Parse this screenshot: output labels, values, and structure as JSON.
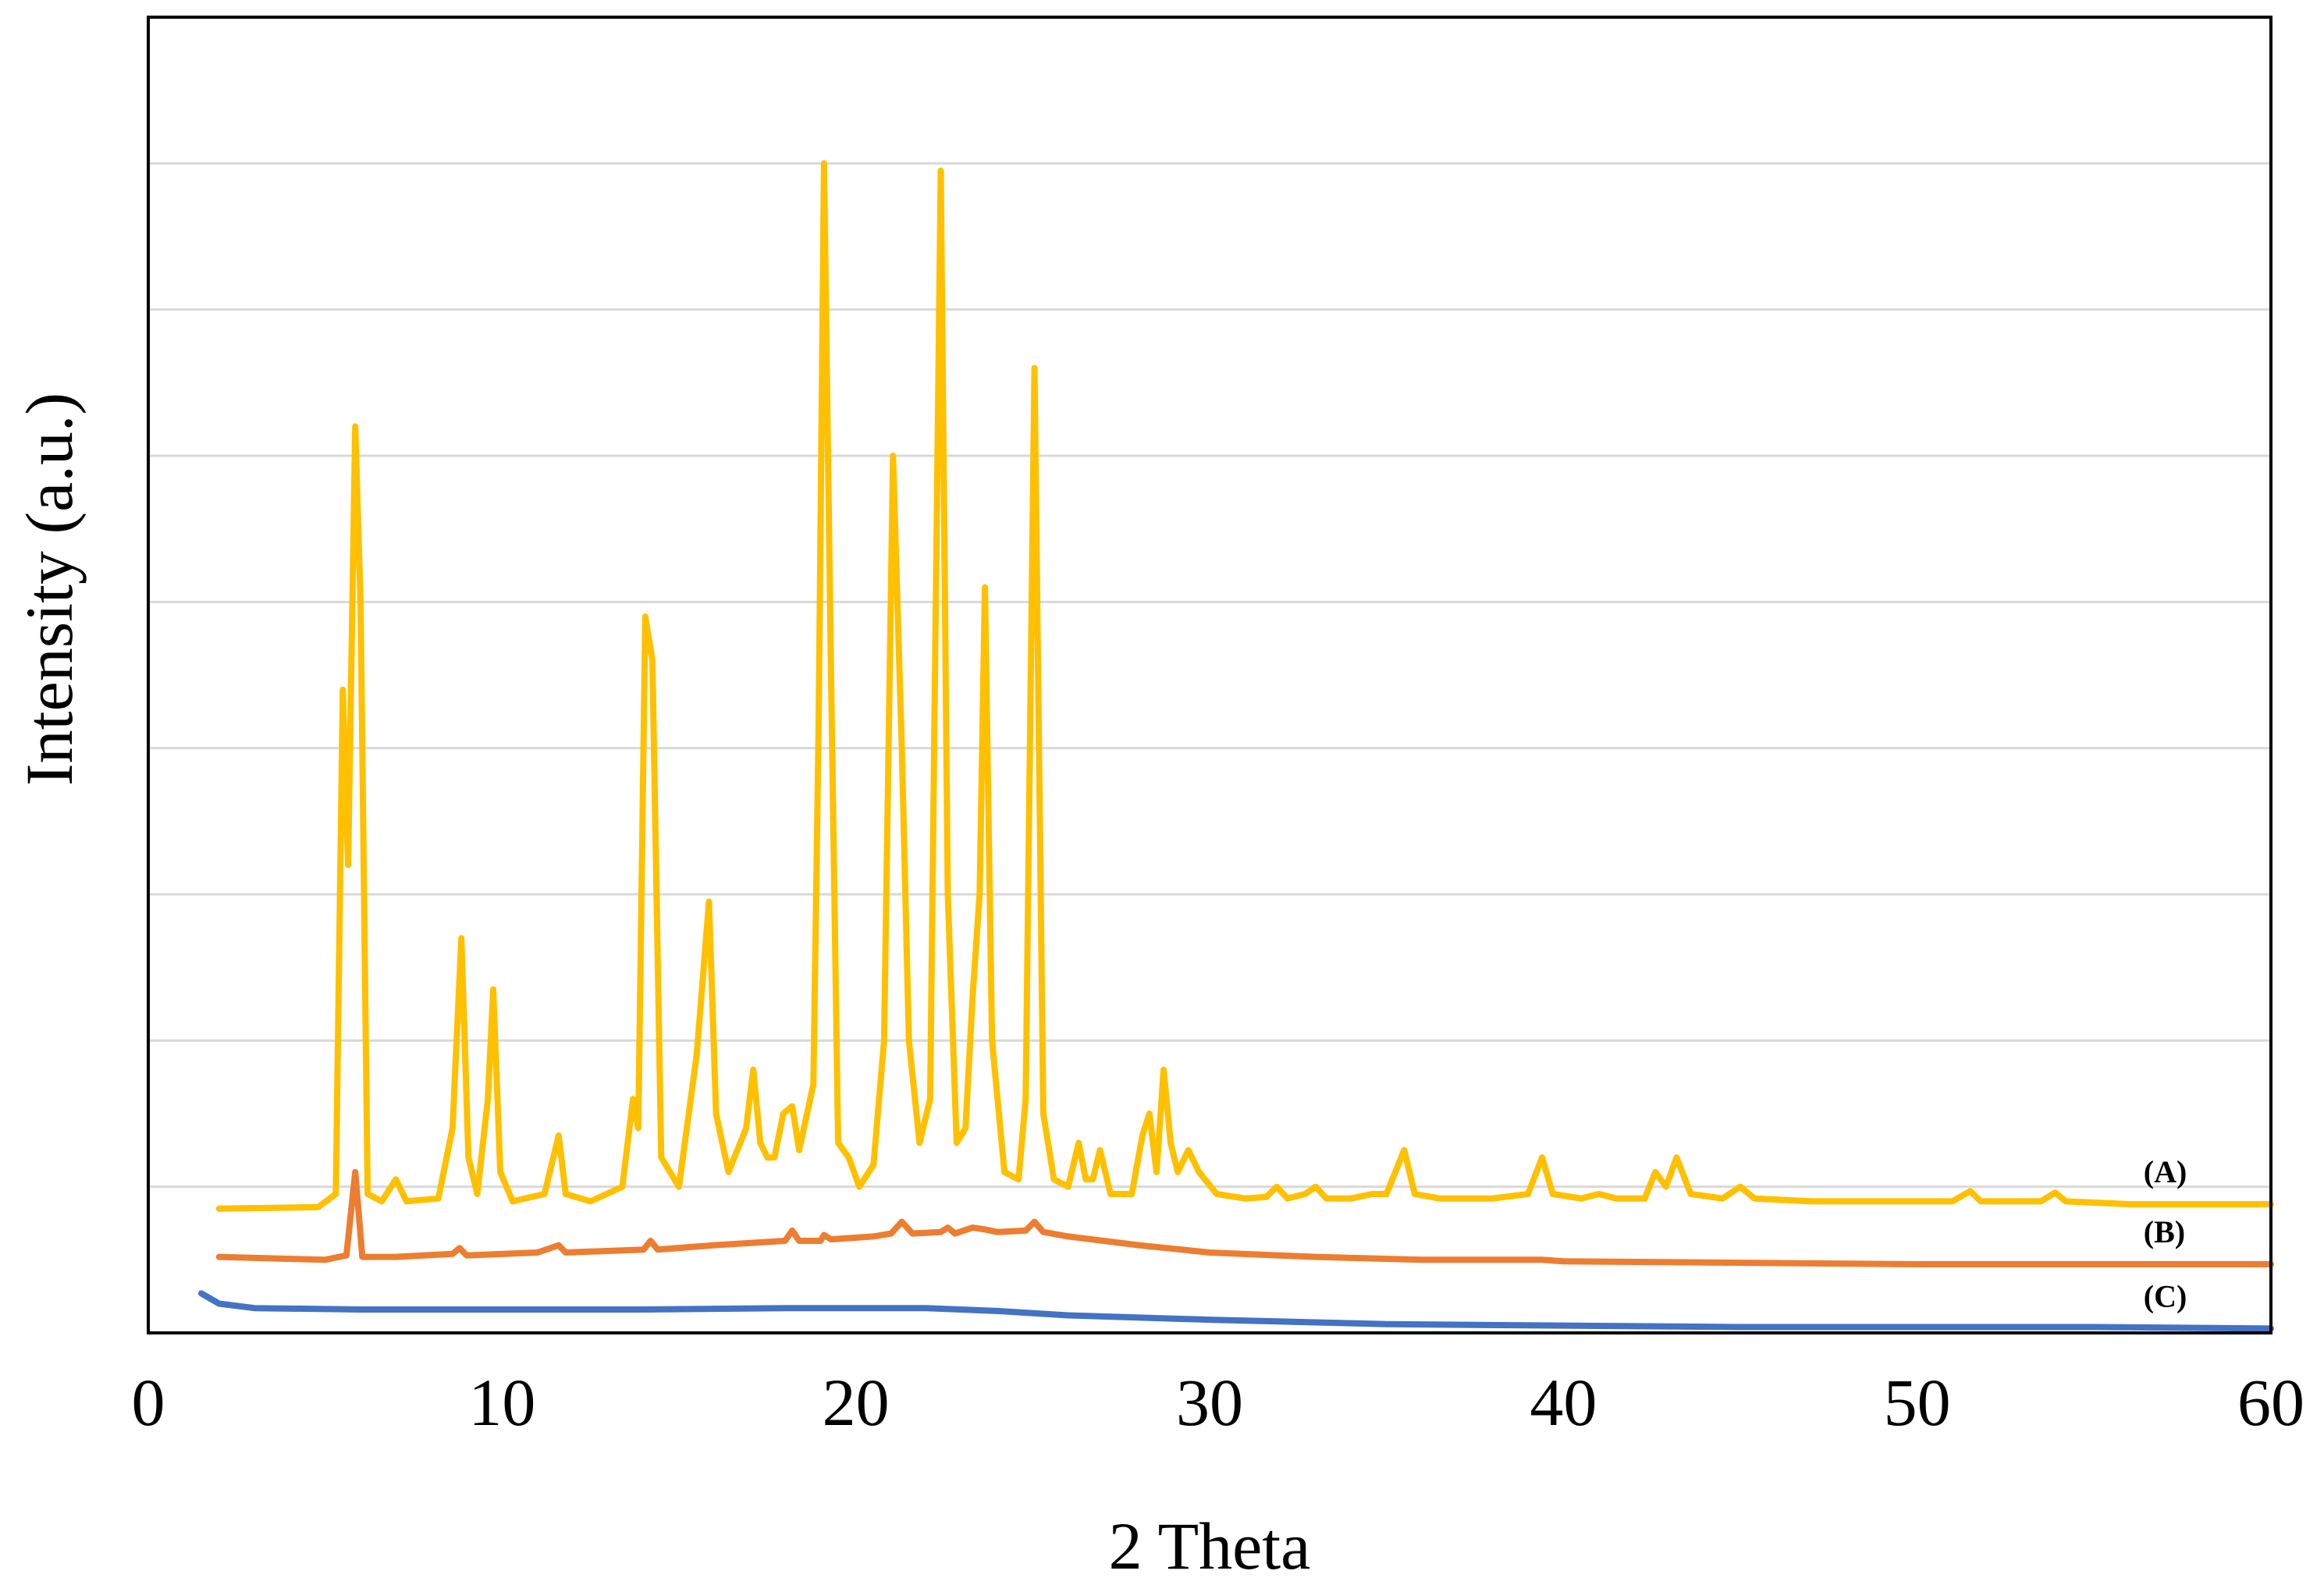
{
  "chart_data": {
    "type": "line",
    "title": "",
    "xlabel": "2 Theta",
    "ylabel": "Intensity (a.u.)",
    "xlim": [
      0,
      60
    ],
    "ylim": [
      0,
      9
    ],
    "x_ticks": [
      0,
      10,
      20,
      30,
      40,
      50,
      60
    ],
    "x_tick_labels": [
      "0",
      "10",
      "20",
      "30",
      "40",
      "50",
      "60"
    ],
    "y_tick_labels": [],
    "grid": "horizontal",
    "legend": "none (series labels printed at right end of curves)",
    "series": [
      {
        "name": "(A)",
        "color": "#FFC000",
        "baseline": 0.85,
        "points": [
          [
            2.0,
            0.85
          ],
          [
            4.8,
            0.86
          ],
          [
            5.3,
            0.95
          ],
          [
            5.5,
            4.4
          ],
          [
            5.65,
            3.2
          ],
          [
            5.85,
            6.2
          ],
          [
            6.0,
            5.0
          ],
          [
            6.2,
            0.95
          ],
          [
            6.6,
            0.9
          ],
          [
            7.0,
            1.05
          ],
          [
            7.3,
            0.9
          ],
          [
            8.2,
            0.92
          ],
          [
            8.6,
            1.4
          ],
          [
            8.85,
            2.7
          ],
          [
            9.05,
            1.2
          ],
          [
            9.3,
            0.95
          ],
          [
            9.6,
            1.6
          ],
          [
            9.75,
            2.35
          ],
          [
            9.95,
            1.1
          ],
          [
            10.3,
            0.9
          ],
          [
            11.2,
            0.95
          ],
          [
            11.6,
            1.35
          ],
          [
            11.8,
            0.95
          ],
          [
            12.5,
            0.9
          ],
          [
            13.4,
            1.0
          ],
          [
            13.7,
            1.6
          ],
          [
            13.85,
            1.4
          ],
          [
            14.05,
            4.9
          ],
          [
            14.25,
            4.6
          ],
          [
            14.5,
            1.2
          ],
          [
            15.0,
            1.0
          ],
          [
            15.5,
            1.9
          ],
          [
            15.85,
            2.95
          ],
          [
            16.05,
            1.5
          ],
          [
            16.4,
            1.1
          ],
          [
            16.9,
            1.4
          ],
          [
            17.1,
            1.8
          ],
          [
            17.3,
            1.3
          ],
          [
            17.5,
            1.2
          ],
          [
            17.7,
            1.2
          ],
          [
            17.95,
            1.5
          ],
          [
            18.2,
            1.55
          ],
          [
            18.4,
            1.25
          ],
          [
            18.8,
            1.7
          ],
          [
            18.95,
            4.2
          ],
          [
            19.1,
            8.0
          ],
          [
            19.3,
            4.5
          ],
          [
            19.5,
            1.3
          ],
          [
            19.8,
            1.2
          ],
          [
            20.1,
            1.0
          ],
          [
            20.5,
            1.15
          ],
          [
            20.8,
            2.0
          ],
          [
            21.05,
            6.0
          ],
          [
            21.3,
            4.0
          ],
          [
            21.5,
            2.0
          ],
          [
            21.8,
            1.3
          ],
          [
            22.1,
            1.6
          ],
          [
            22.4,
            7.95
          ],
          [
            22.6,
            3.0
          ],
          [
            22.85,
            1.3
          ],
          [
            23.1,
            1.4
          ],
          [
            23.3,
            2.3
          ],
          [
            23.5,
            3.0
          ],
          [
            23.65,
            5.1
          ],
          [
            23.85,
            2.0
          ],
          [
            24.2,
            1.1
          ],
          [
            24.6,
            1.05
          ],
          [
            24.8,
            1.6
          ],
          [
            25.05,
            6.6
          ],
          [
            25.3,
            1.5
          ],
          [
            25.6,
            1.05
          ],
          [
            26.0,
            1.0
          ],
          [
            26.3,
            1.3
          ],
          [
            26.5,
            1.05
          ],
          [
            26.7,
            1.05
          ],
          [
            26.9,
            1.25
          ],
          [
            27.2,
            0.95
          ],
          [
            27.8,
            0.95
          ],
          [
            28.1,
            1.35
          ],
          [
            28.3,
            1.5
          ],
          [
            28.5,
            1.1
          ],
          [
            28.7,
            1.8
          ],
          [
            28.9,
            1.3
          ],
          [
            29.1,
            1.1
          ],
          [
            29.4,
            1.25
          ],
          [
            29.7,
            1.1
          ],
          [
            30.2,
            0.95
          ],
          [
            31.0,
            0.92
          ],
          [
            31.6,
            0.93
          ],
          [
            31.9,
            1.0
          ],
          [
            32.2,
            0.92
          ],
          [
            32.7,
            0.95
          ],
          [
            33.0,
            1.0
          ],
          [
            33.3,
            0.92
          ],
          [
            34.0,
            0.92
          ],
          [
            34.6,
            0.95
          ],
          [
            35.0,
            0.95
          ],
          [
            35.5,
            1.25
          ],
          [
            35.8,
            0.95
          ],
          [
            36.5,
            0.92
          ],
          [
            38.0,
            0.92
          ],
          [
            39.0,
            0.95
          ],
          [
            39.4,
            1.2
          ],
          [
            39.7,
            0.95
          ],
          [
            40.5,
            0.92
          ],
          [
            41.0,
            0.95
          ],
          [
            41.5,
            0.92
          ],
          [
            42.3,
            0.92
          ],
          [
            42.6,
            1.1
          ],
          [
            42.9,
            1.0
          ],
          [
            43.2,
            1.2
          ],
          [
            43.6,
            0.95
          ],
          [
            44.5,
            0.92
          ],
          [
            45.0,
            1.0
          ],
          [
            45.4,
            0.92
          ],
          [
            47.0,
            0.9
          ],
          [
            49.0,
            0.9
          ],
          [
            51.0,
            0.9
          ],
          [
            51.5,
            0.97
          ],
          [
            51.8,
            0.9
          ],
          [
            53.5,
            0.9
          ],
          [
            53.9,
            0.96
          ],
          [
            54.2,
            0.9
          ],
          [
            56.0,
            0.88
          ],
          [
            58.0,
            0.88
          ],
          [
            60.0,
            0.88
          ]
        ]
      },
      {
        "name": "(B)",
        "color": "#ED7D31",
        "baseline": 0.5,
        "points": [
          [
            2.0,
            0.52
          ],
          [
            5.0,
            0.5
          ],
          [
            5.6,
            0.53
          ],
          [
            5.85,
            1.1
          ],
          [
            6.05,
            0.52
          ],
          [
            7.0,
            0.52
          ],
          [
            8.6,
            0.54
          ],
          [
            8.8,
            0.58
          ],
          [
            9.0,
            0.53
          ],
          [
            11.0,
            0.55
          ],
          [
            11.6,
            0.6
          ],
          [
            11.8,
            0.55
          ],
          [
            14.0,
            0.57
          ],
          [
            14.2,
            0.63
          ],
          [
            14.4,
            0.57
          ],
          [
            16.0,
            0.6
          ],
          [
            18.0,
            0.63
          ],
          [
            18.2,
            0.7
          ],
          [
            18.4,
            0.63
          ],
          [
            19.0,
            0.63
          ],
          [
            19.1,
            0.67
          ],
          [
            19.3,
            0.64
          ],
          [
            20.5,
            0.66
          ],
          [
            21.0,
            0.68
          ],
          [
            21.3,
            0.76
          ],
          [
            21.6,
            0.68
          ],
          [
            22.4,
            0.69
          ],
          [
            22.6,
            0.72
          ],
          [
            22.8,
            0.68
          ],
          [
            23.3,
            0.72
          ],
          [
            23.6,
            0.71
          ],
          [
            24.0,
            0.69
          ],
          [
            24.8,
            0.7
          ],
          [
            25.05,
            0.76
          ],
          [
            25.3,
            0.69
          ],
          [
            26.0,
            0.66
          ],
          [
            28.0,
            0.6
          ],
          [
            30.0,
            0.55
          ],
          [
            33.0,
            0.52
          ],
          [
            36.0,
            0.5
          ],
          [
            39.4,
            0.5
          ],
          [
            40.0,
            0.49
          ],
          [
            45.0,
            0.48
          ],
          [
            50.0,
            0.47
          ],
          [
            55.0,
            0.47
          ],
          [
            60.0,
            0.47
          ]
        ]
      },
      {
        "name": "(C)",
        "color": "#4472C4",
        "baseline": 0.15,
        "points": [
          [
            1.5,
            0.27
          ],
          [
            2.0,
            0.2
          ],
          [
            3.0,
            0.17
          ],
          [
            6.0,
            0.16
          ],
          [
            10.0,
            0.16
          ],
          [
            14.0,
            0.16
          ],
          [
            18.0,
            0.17
          ],
          [
            22.0,
            0.17
          ],
          [
            24.0,
            0.15
          ],
          [
            26.0,
            0.12
          ],
          [
            30.0,
            0.09
          ],
          [
            35.0,
            0.06
          ],
          [
            40.0,
            0.05
          ],
          [
            45.0,
            0.04
          ],
          [
            50.0,
            0.04
          ],
          [
            55.0,
            0.04
          ],
          [
            60.0,
            0.03
          ]
        ]
      }
    ]
  }
}
